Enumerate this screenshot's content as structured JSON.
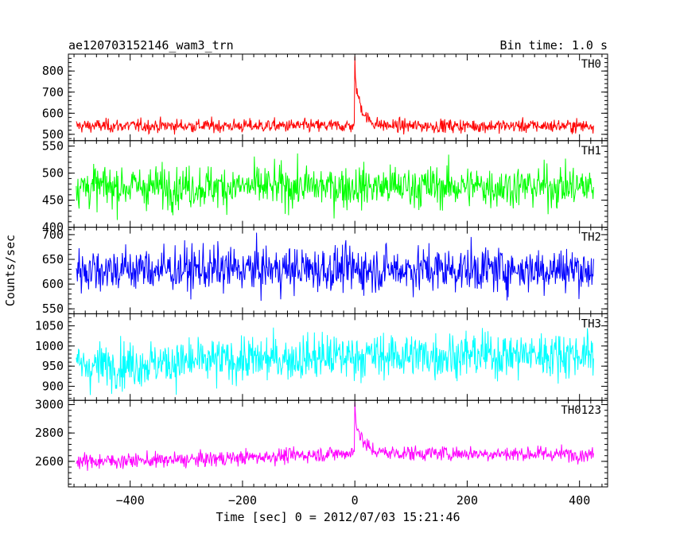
{
  "chart_data": {
    "type": "line",
    "title": "ae120703152146_wam3_trn",
    "subtitle": "Bin time: 1.0 s",
    "xlabel": "Time [sec] 0 = 2012/07/03 15:21:46",
    "ylabel": "Counts/sec",
    "xlim": [
      -510,
      450
    ],
    "x_range_data": [
      -496,
      425
    ],
    "x_bin": 1.0,
    "x_ticks": [
      -400,
      -200,
      0,
      200,
      400
    ],
    "x_tick_labels": [
      "−400",
      "−200",
      "0",
      "200",
      "400"
    ],
    "grid": false,
    "panels": [
      {
        "name": "TH0",
        "color": "#ff0000",
        "ylim": [
          470,
          880
        ],
        "y_ticks": [
          500,
          600,
          700,
          800
        ],
        "baseline_mean": 540,
        "noise_half_range": 45,
        "trend": [
          [
            -496,
            0
          ],
          [
            425,
            0
          ]
        ],
        "burst": {
          "t0": 0,
          "peak": 870,
          "decay_s": 12
        },
        "summary": {
          "min": 480,
          "max": 870
        }
      },
      {
        "name": "TH1",
        "color": "#00ff00",
        "ylim": [
          400,
          560
        ],
        "y_ticks": [
          400,
          450,
          500,
          550
        ],
        "baseline_mean": 475,
        "noise_half_range": 55,
        "trend": [
          [
            -496,
            0
          ],
          [
            425,
            0
          ]
        ],
        "burst": null,
        "summary": {
          "min": 405,
          "max": 560
        }
      },
      {
        "name": "TH2",
        "color": "#0000ff",
        "ylim": [
          540,
          715
        ],
        "y_ticks": [
          550,
          600,
          650,
          700
        ],
        "baseline_mean": 630,
        "noise_half_range": 65,
        "trend": [
          [
            -496,
            0
          ],
          [
            425,
            0
          ]
        ],
        "burst": null,
        "summary": {
          "min": 545,
          "max": 715
        }
      },
      {
        "name": "TH3",
        "color": "#00ffff",
        "ylim": [
          865,
          1080
        ],
        "y_ticks": [
          900,
          950,
          1000,
          1050
        ],
        "baseline_mean": 965,
        "noise_half_range": 80,
        "trend": [
          [
            -496,
            -15
          ],
          [
            0,
            10
          ],
          [
            425,
            15
          ]
        ],
        "burst": null,
        "summary": {
          "min": 870,
          "max": 1075
        }
      },
      {
        "name": "TH0123",
        "color": "#ff00ff",
        "ylim": [
          2420,
          3030
        ],
        "y_ticks": [
          2600,
          2800,
          3000
        ],
        "baseline_mean": 2620,
        "noise_half_range": 75,
        "trend": [
          [
            -496,
            -20
          ],
          [
            -300,
            -10
          ],
          [
            0,
            40
          ],
          [
            425,
            30
          ]
        ],
        "burst": {
          "t0": 0,
          "peak": 3020,
          "decay_s": 12
        },
        "summary": {
          "min": 2440,
          "max": 3020
        }
      }
    ]
  }
}
